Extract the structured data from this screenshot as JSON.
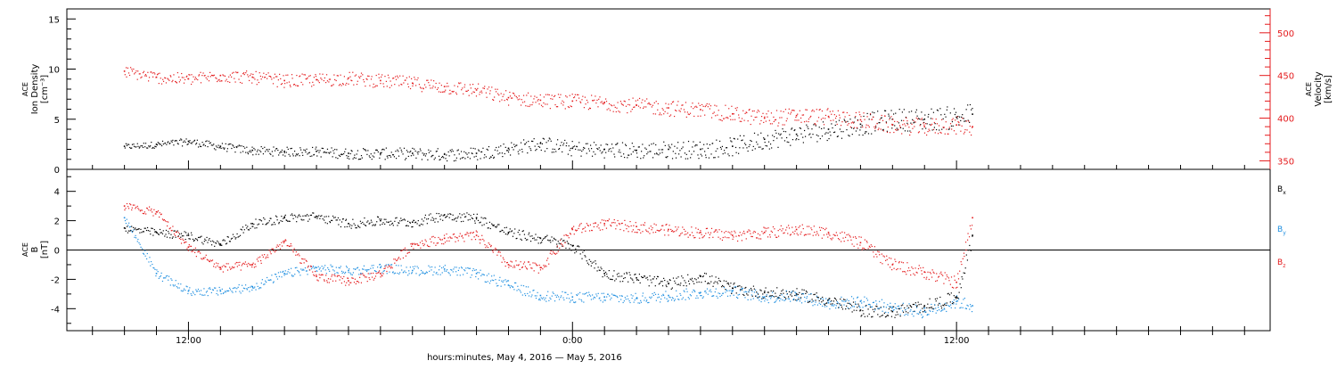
{
  "chart_data": [
    {
      "type": "scatter",
      "panel": "top",
      "left_axis_label": [
        "ACE",
        "Ion Density",
        "[cm⁻³]"
      ],
      "right_axis_label": [
        "ACE",
        "Velocity",
        "[km/s]"
      ],
      "left_ylim": [
        0,
        16
      ],
      "left_ticks": [
        "0",
        "5",
        "10",
        "15"
      ],
      "right_ylim": [
        340,
        528
      ],
      "right_ticks": [
        "350",
        "400",
        "450",
        "500"
      ],
      "colors": {
        "density": "#000000",
        "velocity": "#e41a1c"
      },
      "series": [
        {
          "key": "density",
          "axis": "left",
          "x": [
            -14,
            -13,
            -12,
            -11,
            -10,
            -9,
            -8,
            -7,
            -6,
            -5,
            -4,
            -3,
            -2,
            -1,
            0,
            1,
            2,
            3,
            4,
            5,
            6,
            7,
            8,
            9,
            10,
            11,
            12,
            12.5
          ],
          "y": [
            2.3,
            2.5,
            2.8,
            2.3,
            1.9,
            1.8,
            1.8,
            1.6,
            1.6,
            1.6,
            1.5,
            1.6,
            2.1,
            2.6,
            2.1,
            2.0,
            1.9,
            2.0,
            2.0,
            2.3,
            3.0,
            3.5,
            4.0,
            4.5,
            5.0,
            5.0,
            5.2,
            5.5
          ]
        },
        {
          "key": "velocity",
          "axis": "right",
          "x": [
            -14,
            -13,
            -12,
            -11,
            -10,
            -9,
            -8,
            -7,
            -6,
            -5,
            -4,
            -3,
            -2,
            -1,
            0,
            1,
            2,
            3,
            4,
            5,
            6,
            7,
            8,
            9,
            10,
            11,
            12,
            12.5
          ],
          "y": [
            455,
            448,
            446,
            450,
            448,
            444,
            445,
            447,
            444,
            441,
            437,
            433,
            424,
            421,
            420,
            418,
            415,
            412,
            410,
            405,
            400,
            403,
            402,
            398,
            392,
            390,
            392,
            390
          ]
        }
      ]
    },
    {
      "type": "scatter",
      "panel": "bottom",
      "left_axis_label": [
        "ACE",
        "B",
        "[nT]"
      ],
      "ylim": [
        -5.5,
        5.5
      ],
      "yticks": [
        "-4",
        "-2",
        "0",
        "2",
        "4"
      ],
      "legend": [
        {
          "key": "bx",
          "base": "B",
          "sub": "x",
          "color": "#000000"
        },
        {
          "key": "by",
          "base": "B",
          "sub": "y",
          "color": "#1f8fe0"
        },
        {
          "key": "bz",
          "base": "B",
          "sub": "z",
          "color": "#e41a1c"
        }
      ],
      "series": [
        {
          "key": "bx",
          "x": [
            -14,
            -13,
            -12,
            -11,
            -10,
            -9,
            -8,
            -7,
            -6,
            -5,
            -4,
            -3,
            -2,
            -1,
            0,
            1,
            2,
            3,
            4,
            5,
            6,
            7,
            8,
            9,
            10,
            11,
            12,
            12.5
          ],
          "y": [
            1.5,
            1.2,
            1.0,
            0.4,
            1.8,
            2.2,
            2.3,
            1.8,
            2.0,
            1.9,
            2.4,
            2.2,
            1.2,
            0.8,
            0.3,
            -1.6,
            -1.9,
            -2.3,
            -1.8,
            -2.6,
            -2.9,
            -3.0,
            -3.4,
            -4.1,
            -4.2,
            -3.8,
            -3.2,
            1.0
          ]
        },
        {
          "key": "by",
          "x": [
            -14,
            -13,
            -12,
            -11,
            -10,
            -9,
            -8,
            -7,
            -6,
            -5,
            -4,
            -3,
            -2,
            -1,
            0,
            1,
            2,
            3,
            4,
            5,
            6,
            7,
            8,
            9,
            10,
            11,
            12,
            12.5
          ],
          "y": [
            2.2,
            -1.6,
            -2.8,
            -2.8,
            -2.5,
            -1.6,
            -1.2,
            -1.4,
            -1.2,
            -1.4,
            -1.3,
            -1.6,
            -2.4,
            -3.1,
            -3.2,
            -3.2,
            -3.3,
            -3.1,
            -2.9,
            -2.8,
            -3.2,
            -3.1,
            -3.6,
            -3.5,
            -3.9,
            -4.2,
            -3.5,
            -3.8
          ]
        },
        {
          "key": "bz",
          "x": [
            -14,
            -13,
            -12,
            -11,
            -10,
            -9,
            -8,
            -7,
            -6,
            -5,
            -4,
            -3,
            -2,
            -1,
            0,
            1,
            2,
            3,
            4,
            5,
            6,
            7,
            8,
            9,
            10,
            11,
            12,
            12.5
          ],
          "y": [
            3.0,
            2.6,
            0.2,
            -1.2,
            -1.0,
            0.6,
            -1.8,
            -2.1,
            -1.6,
            0.4,
            0.8,
            1.0,
            -1.0,
            -1.2,
            1.4,
            1.8,
            1.6,
            1.4,
            1.2,
            1.0,
            1.2,
            1.4,
            1.2,
            0.5,
            -1.0,
            -1.5,
            -2.2,
            2.2
          ]
        }
      ]
    }
  ],
  "x_axis": {
    "range": [
      -15.8,
      21.8
    ],
    "tick_labels": [
      {
        "value": -12,
        "label": "12:00"
      },
      {
        "value": 0,
        "label": "0:00"
      },
      {
        "value": 12,
        "label": "12:00"
      }
    ],
    "title": "hours:minutes,  May  4, 2016 — May  5, 2016"
  }
}
